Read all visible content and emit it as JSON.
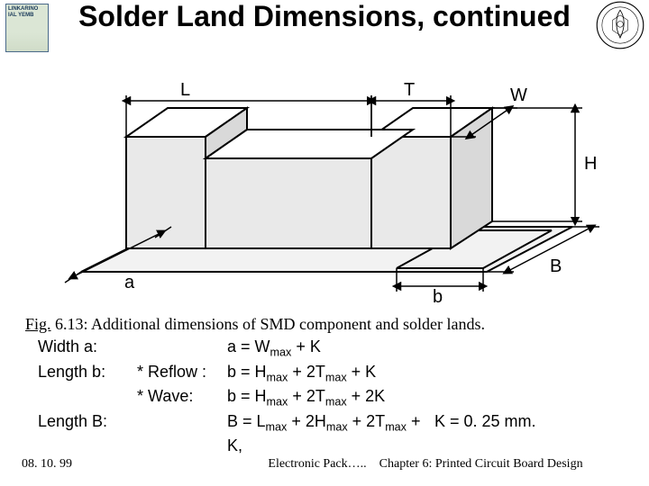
{
  "title": "Solder Land Dimensions, continued",
  "logo_left_text": "LINKARINO\nIAL\nYEMB",
  "figure": {
    "caption_label": "Fig.",
    "caption_rest": " 6.13: Additional dimensions of SMD component and solder lands.",
    "labels": {
      "L": "L",
      "T": "T",
      "W": "W",
      "H": "H",
      "a": "a",
      "b": "b",
      "B": "B"
    },
    "stroke": "#000000",
    "fill_top": "#ffffff",
    "fill_side": "#d9d9d9",
    "fill_front": "#e9e9e9",
    "pad_fill": "#f2f2f2"
  },
  "dimensions": {
    "rows": [
      {
        "name": "Width a:",
        "method": "",
        "formula_html": "a = W<sub>max</sub> + K"
      },
      {
        "name": "Length b:",
        "method": "* Reflow :",
        "formula_html": "b = H<sub>max</sub> + 2T<sub>max</sub> + K"
      },
      {
        "name": "",
        "method": "* Wave:",
        "formula_html": "b = H<sub>max</sub> + 2T<sub>max</sub> + 2K"
      },
      {
        "name": "Length B:",
        "method": "",
        "formula_html": "B = L<sub>max</sub> + 2H<sub>max</sub> + 2T<sub>max</sub> + K,",
        "extra": "K = 0. 25 mm."
      }
    ]
  },
  "footer": {
    "date": "08. 10. 99",
    "mid_left": "Electronic Pack…..",
    "mid_right": "Chapter 6: Printed Circuit Board Design"
  }
}
